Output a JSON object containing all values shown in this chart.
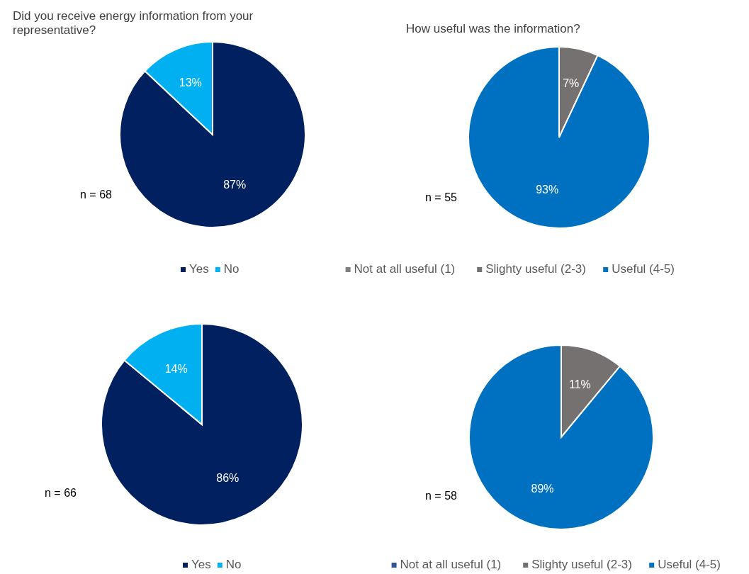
{
  "chart_data": [
    {
      "type": "pie",
      "title": "Did you receive energy information from your representative?",
      "categories": [
        "Yes",
        "No"
      ],
      "values": [
        87,
        13
      ],
      "colors": [
        "#002060",
        "#00b0f0"
      ],
      "value_labels": [
        "87%",
        "13%"
      ],
      "annotations": [
        "n = 68"
      ],
      "legend": "bottom"
    },
    {
      "type": "pie",
      "title": "How useful was the information?",
      "categories": [
        "Not at all useful (1)",
        "Slighty useful (2-3)",
        "Useful (4-5)"
      ],
      "values": [
        0,
        7,
        93
      ],
      "colors": [
        "#7f7f7f",
        "#767171",
        "#0070c0"
      ],
      "value_labels": [
        null,
        "7%",
        "93%"
      ],
      "annotations": [
        "n = 55"
      ],
      "legend": "bottom"
    },
    {
      "type": "pie",
      "categories": [
        "Yes",
        "No"
      ],
      "values": [
        86,
        14
      ],
      "colors": [
        "#002060",
        "#00b0f0"
      ],
      "value_labels": [
        "86%",
        "14%"
      ],
      "annotations": [
        "n = 66"
      ],
      "legend": "bottom"
    },
    {
      "type": "pie",
      "categories": [
        "Not at all useful (1)",
        "Slighty useful (2-3)",
        "Useful (4-5)"
      ],
      "values": [
        0,
        11,
        89
      ],
      "colors": [
        "#2f5597",
        "#767171",
        "#0070c0"
      ],
      "value_labels": [
        null,
        "11%",
        "89%"
      ],
      "annotations": [
        "n = 58"
      ],
      "legend": "bottom"
    }
  ]
}
